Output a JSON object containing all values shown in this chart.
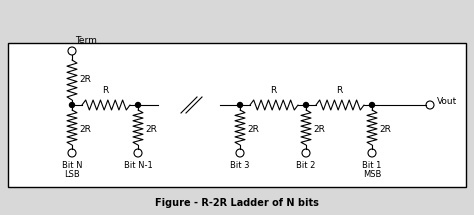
{
  "title": "Figure - R-2R Ladder of N bits",
  "background_color": "#d8d8d8",
  "box_color": "#ffffff",
  "border_color": "#000000",
  "line_color": "#000000",
  "text_color": "#000000",
  "fig_width": 4.74,
  "fig_height": 2.15,
  "dpi": 100,
  "term_label": "Term",
  "vout_label": "Vout",
  "font_size": 6.5
}
